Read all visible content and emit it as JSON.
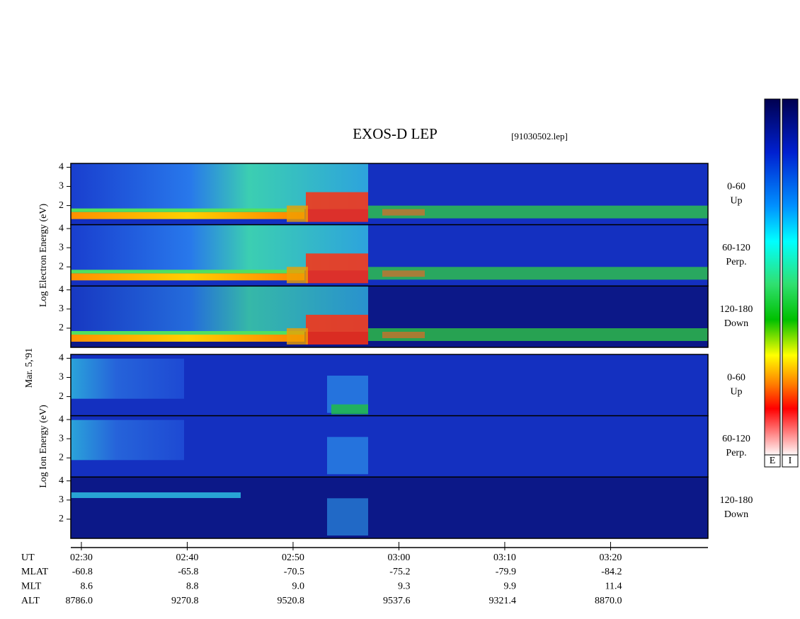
{
  "chart_data": {
    "type": "spectrogram",
    "title": "EXOS-D LEP",
    "file": "[91030502.lep]",
    "date": "Mar. 5,'91",
    "xlim": [
      149,
      209.2
    ],
    "xticks": [
      {
        "value": 150,
        "label": "02:30"
      },
      {
        "value": 160,
        "label": "02:40"
      },
      {
        "value": 170,
        "label": "02:50"
      },
      {
        "value": 180,
        "label": "03:00"
      },
      {
        "value": 190,
        "label": "03:10"
      },
      {
        "value": 200,
        "label": "03:20"
      }
    ],
    "ylim": [
      1,
      4.2
    ],
    "yticks": [
      2,
      3,
      4
    ],
    "groups": [
      {
        "label": "Log Electron Energy (eV)",
        "panels": [
          {
            "angle": "0-60",
            "direction": "Up"
          },
          {
            "angle": "60-120",
            "direction": "Perp."
          },
          {
            "angle": "120-180",
            "direction": "Down"
          }
        ]
      },
      {
        "label": "Log Ion Energy (eV)",
        "panels": [
          {
            "angle": "0-60",
            "direction": "Up"
          },
          {
            "angle": "60-120",
            "direction": "Perp."
          },
          {
            "angle": "120-180",
            "direction": "Down"
          }
        ]
      }
    ],
    "colorbars": [
      "E",
      "I"
    ],
    "orbit": {
      "time_label": "UT",
      "rows": [
        {
          "name": "MLAT",
          "values": [
            "-60.8",
            "-65.8",
            "-70.5",
            "-75.2",
            "-79.9",
            "-84.2"
          ]
        },
        {
          "name": "MLT",
          "values": [
            "8.6",
            "8.8",
            "9.0",
            "9.3",
            "9.9",
            "11.4"
          ]
        },
        {
          "name": "ALT",
          "values": [
            "8786.0",
            "9270.8",
            "9520.8",
            "9537.6",
            "9321.4",
            "8870.0"
          ]
        }
      ]
    }
  }
}
